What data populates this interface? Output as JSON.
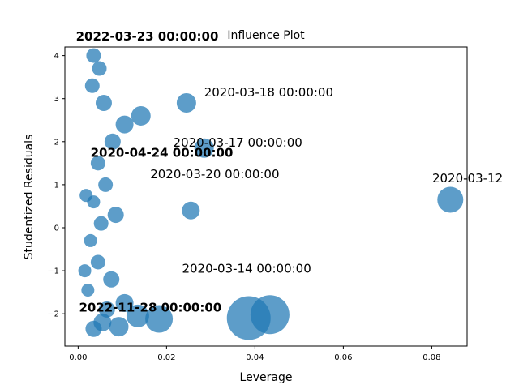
{
  "chart_data": {
    "type": "scatter",
    "title": "Influence Plot",
    "xlabel": "Leverage",
    "ylabel": "Studentized Residuals",
    "xlim": [
      -0.003,
      0.088
    ],
    "ylim": [
      -2.75,
      4.2
    ],
    "xticks": [
      "0.00",
      "0.02",
      "0.04",
      "0.06",
      "0.08"
    ],
    "xtick_values": [
      0.0,
      0.02,
      0.04,
      0.06,
      0.08
    ],
    "yticks": [
      "−2",
      "−1",
      "0",
      "1",
      "2",
      "3",
      "4"
    ],
    "ytick_values": [
      -2,
      -1,
      0,
      1,
      2,
      3,
      4
    ],
    "marker_color": "#1f77b4",
    "grid": false,
    "points": [
      {
        "x": 0.0842,
        "y": 0.65,
        "size": 16,
        "label": "2020-03-12 00:00:00"
      },
      {
        "x": 0.0386,
        "y": -2.1,
        "size": 27,
        "label": ""
      },
      {
        "x": 0.0434,
        "y": -2.02,
        "size": 24,
        "label": ""
      },
      {
        "x": 0.0183,
        "y": -2.12,
        "size": 17,
        "label": ""
      },
      {
        "x": 0.0135,
        "y": -2.05,
        "size": 14,
        "label": ""
      },
      {
        "x": 0.0092,
        "y": -2.3,
        "size": 12,
        "label": ""
      },
      {
        "x": 0.0055,
        "y": -2.2,
        "size": 11,
        "label": ""
      },
      {
        "x": 0.0035,
        "y": -2.35,
        "size": 10,
        "label": ""
      },
      {
        "x": 0.0065,
        "y": -1.9,
        "size": 10,
        "label": ""
      },
      {
        "x": 0.0105,
        "y": -1.75,
        "size": 11,
        "label": ""
      },
      {
        "x": 0.0075,
        "y": -1.2,
        "size": 10,
        "label": ""
      },
      {
        "x": 0.0045,
        "y": -0.8,
        "size": 9,
        "label": ""
      },
      {
        "x": 0.0028,
        "y": -0.3,
        "size": 8,
        "label": ""
      },
      {
        "x": 0.0052,
        "y": 0.1,
        "size": 9,
        "label": ""
      },
      {
        "x": 0.0085,
        "y": 0.3,
        "size": 10,
        "label": ""
      },
      {
        "x": 0.0035,
        "y": 0.6,
        "size": 8,
        "label": ""
      },
      {
        "x": 0.0062,
        "y": 1.0,
        "size": 9,
        "label": ""
      },
      {
        "x": 0.0045,
        "y": 1.5,
        "size": 9,
        "label": ""
      },
      {
        "x": 0.0078,
        "y": 2.0,
        "size": 10,
        "label": ""
      },
      {
        "x": 0.0105,
        "y": 2.4,
        "size": 11,
        "label": ""
      },
      {
        "x": 0.0142,
        "y": 2.6,
        "size": 12,
        "label": ""
      },
      {
        "x": 0.0058,
        "y": 2.9,
        "size": 10,
        "label": ""
      },
      {
        "x": 0.0032,
        "y": 3.3,
        "size": 9,
        "label": ""
      },
      {
        "x": 0.0048,
        "y": 3.7,
        "size": 9,
        "label": ""
      },
      {
        "x": 0.0035,
        "y": 4.0,
        "size": 9,
        "label": ""
      },
      {
        "x": 0.0245,
        "y": 2.9,
        "size": 12,
        "label": ""
      },
      {
        "x": 0.0285,
        "y": 1.85,
        "size": 12,
        "label": ""
      },
      {
        "x": 0.0255,
        "y": 0.4,
        "size": 11,
        "label": ""
      },
      {
        "x": 0.0022,
        "y": -1.45,
        "size": 8,
        "label": ""
      },
      {
        "x": 0.0018,
        "y": 0.75,
        "size": 8,
        "label": ""
      },
      {
        "x": 0.0015,
        "y": -1.0,
        "size": 8,
        "label": ""
      }
    ],
    "annotations": [
      {
        "text": "2020-03-12",
        "x": 0.0801,
        "y": 1.05,
        "bold": false
      },
      {
        "text": "2022-03-23 00:00:00",
        "x": -0.0005,
        "y": 4.35,
        "bold": true
      },
      {
        "text": "2020-03-18 00:00:00",
        "x": 0.0285,
        "y": 3.05,
        "bold": false
      },
      {
        "text": "2020-03-17 00:00:00",
        "x": 0.0215,
        "y": 1.88,
        "bold": false
      },
      {
        "text": "2020-04-24 00:00:00",
        "x": 0.0028,
        "y": 1.65,
        "bold": true
      },
      {
        "text": "2020-03-20 00:00:00",
        "x": 0.0163,
        "y": 1.15,
        "bold": false
      },
      {
        "text": "2022-11-28 00:00:00",
        "x": 0.0002,
        "y": -1.95,
        "bold": true
      },
      {
        "text": "2020-03-14 00:00:00",
        "x": 0.0235,
        "y": -1.05,
        "bold": false
      }
    ]
  }
}
